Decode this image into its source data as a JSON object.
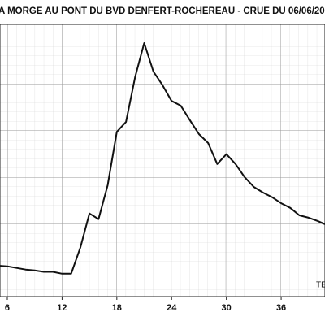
{
  "chart_data": {
    "type": "line",
    "title": "A MORGE AU PONT DU BVD DENFERT-ROCHEREAU - CRUE DU 06/06/20",
    "x_label": "TE",
    "x": [
      5.2,
      6,
      8,
      9,
      10,
      11,
      12,
      13,
      14,
      15,
      16,
      17,
      18,
      19,
      20,
      21,
      22,
      23,
      24,
      25,
      26,
      27,
      28,
      29,
      30,
      31,
      32,
      33,
      34,
      35,
      36,
      37,
      38,
      39,
      40,
      40.8
    ],
    "series": [
      {
        "color": "#111111",
        "values": [
          1.1,
          1.09,
          1.02,
          1.0,
          0.97,
          0.97,
          0.93,
          0.93,
          1.49,
          2.22,
          2.1,
          2.83,
          3.97,
          4.18,
          5.14,
          5.87,
          5.26,
          4.97,
          4.63,
          4.53,
          4.22,
          3.92,
          3.73,
          3.28,
          3.49,
          3.28,
          3.0,
          2.79,
          2.67,
          2.57,
          2.44,
          2.34,
          2.18,
          2.13,
          2.06,
          1.99
        ]
      }
    ],
    "xlim": [
      5.2,
      40.8
    ],
    "ylim": [
      0.44,
      6.27
    ],
    "xticks": [
      6,
      12,
      18,
      24,
      30,
      36
    ],
    "grid": true
  }
}
